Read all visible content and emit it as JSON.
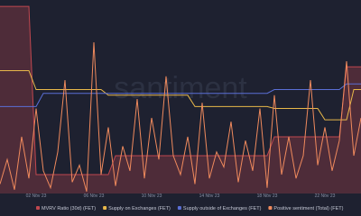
{
  "chart_data": {
    "type": "line",
    "watermark": "santiment",
    "xlim": [
      0,
      50
    ],
    "ylim": [
      0,
      100
    ],
    "x": [
      0,
      1,
      2,
      3,
      4,
      5,
      6,
      7,
      8,
      9,
      10,
      11,
      12,
      13,
      14,
      15,
      16,
      17,
      18,
      19,
      20,
      21,
      22,
      23,
      24,
      25,
      26,
      27,
      28,
      29,
      30,
      31,
      32,
      33,
      34,
      35,
      36,
      37,
      38,
      39,
      40,
      41,
      42,
      43,
      44,
      45,
      46,
      47,
      48,
      49,
      50
    ],
    "xticks": [
      {
        "value": 5,
        "label": "02 Nov 23"
      },
      {
        "value": 13,
        "label": "06 Nov 23"
      },
      {
        "value": 21,
        "label": "10 Nov 23"
      },
      {
        "value": 29,
        "label": "14 Nov 23"
      },
      {
        "value": 37,
        "label": "18 Nov 23"
      },
      {
        "value": 45,
        "label": "22 Nov 23"
      }
    ],
    "series": [
      {
        "name": "MVRV Ratio (30d) (FET)",
        "color": "#c0474f",
        "area": true,
        "values": [
          99,
          99,
          99,
          99,
          99,
          10,
          10,
          10,
          10,
          10,
          10,
          10,
          10,
          10,
          10,
          10,
          20,
          20,
          20,
          20,
          20,
          20,
          20,
          20,
          20,
          20,
          20,
          20,
          20,
          20,
          20,
          20,
          20,
          20,
          20,
          20,
          20,
          20,
          30,
          30,
          30,
          30,
          30,
          30,
          30,
          30,
          30,
          30,
          67,
          67,
          67
        ]
      },
      {
        "name": "Supply on Exchanges (FET)",
        "color": "#e8b84a",
        "values": [
          65,
          65,
          65,
          65,
          65,
          55,
          55,
          55,
          55,
          55,
          55,
          55,
          55,
          55,
          55,
          52,
          52,
          52,
          52,
          52,
          52,
          52,
          52,
          52,
          52,
          52,
          52,
          46,
          46,
          46,
          46,
          46,
          46,
          46,
          46,
          46,
          46,
          46,
          45,
          45,
          45,
          45,
          45,
          45,
          45,
          39,
          39,
          39,
          39,
          55,
          55
        ]
      },
      {
        "name": "Supply outside of Exchanges (FET)",
        "color": "#5a6fd6",
        "values": [
          46,
          46,
          46,
          46,
          46,
          46,
          53,
          53,
          53,
          53,
          53,
          53,
          53,
          53,
          53,
          53,
          53,
          53,
          53,
          53,
          53,
          53,
          53,
          53,
          53,
          53,
          53,
          53,
          53,
          53,
          53,
          53,
          53,
          53,
          53,
          53,
          53,
          53,
          55,
          55,
          55,
          55,
          55,
          55,
          55,
          55,
          55,
          55,
          58,
          58,
          58
        ]
      },
      {
        "name": "Positive sentiment (Total) (FET)",
        "color": "#f08a5d",
        "values": [
          5,
          18,
          2,
          30,
          8,
          45,
          12,
          3,
          22,
          60,
          6,
          15,
          1,
          80,
          10,
          35,
          4,
          25,
          12,
          50,
          8,
          40,
          18,
          62,
          20,
          10,
          30,
          5,
          48,
          8,
          22,
          14,
          38,
          6,
          28,
          12,
          45,
          3,
          52,
          10,
          30,
          8,
          20,
          60,
          15,
          35,
          12,
          28,
          70,
          20,
          40
        ]
      }
    ]
  }
}
